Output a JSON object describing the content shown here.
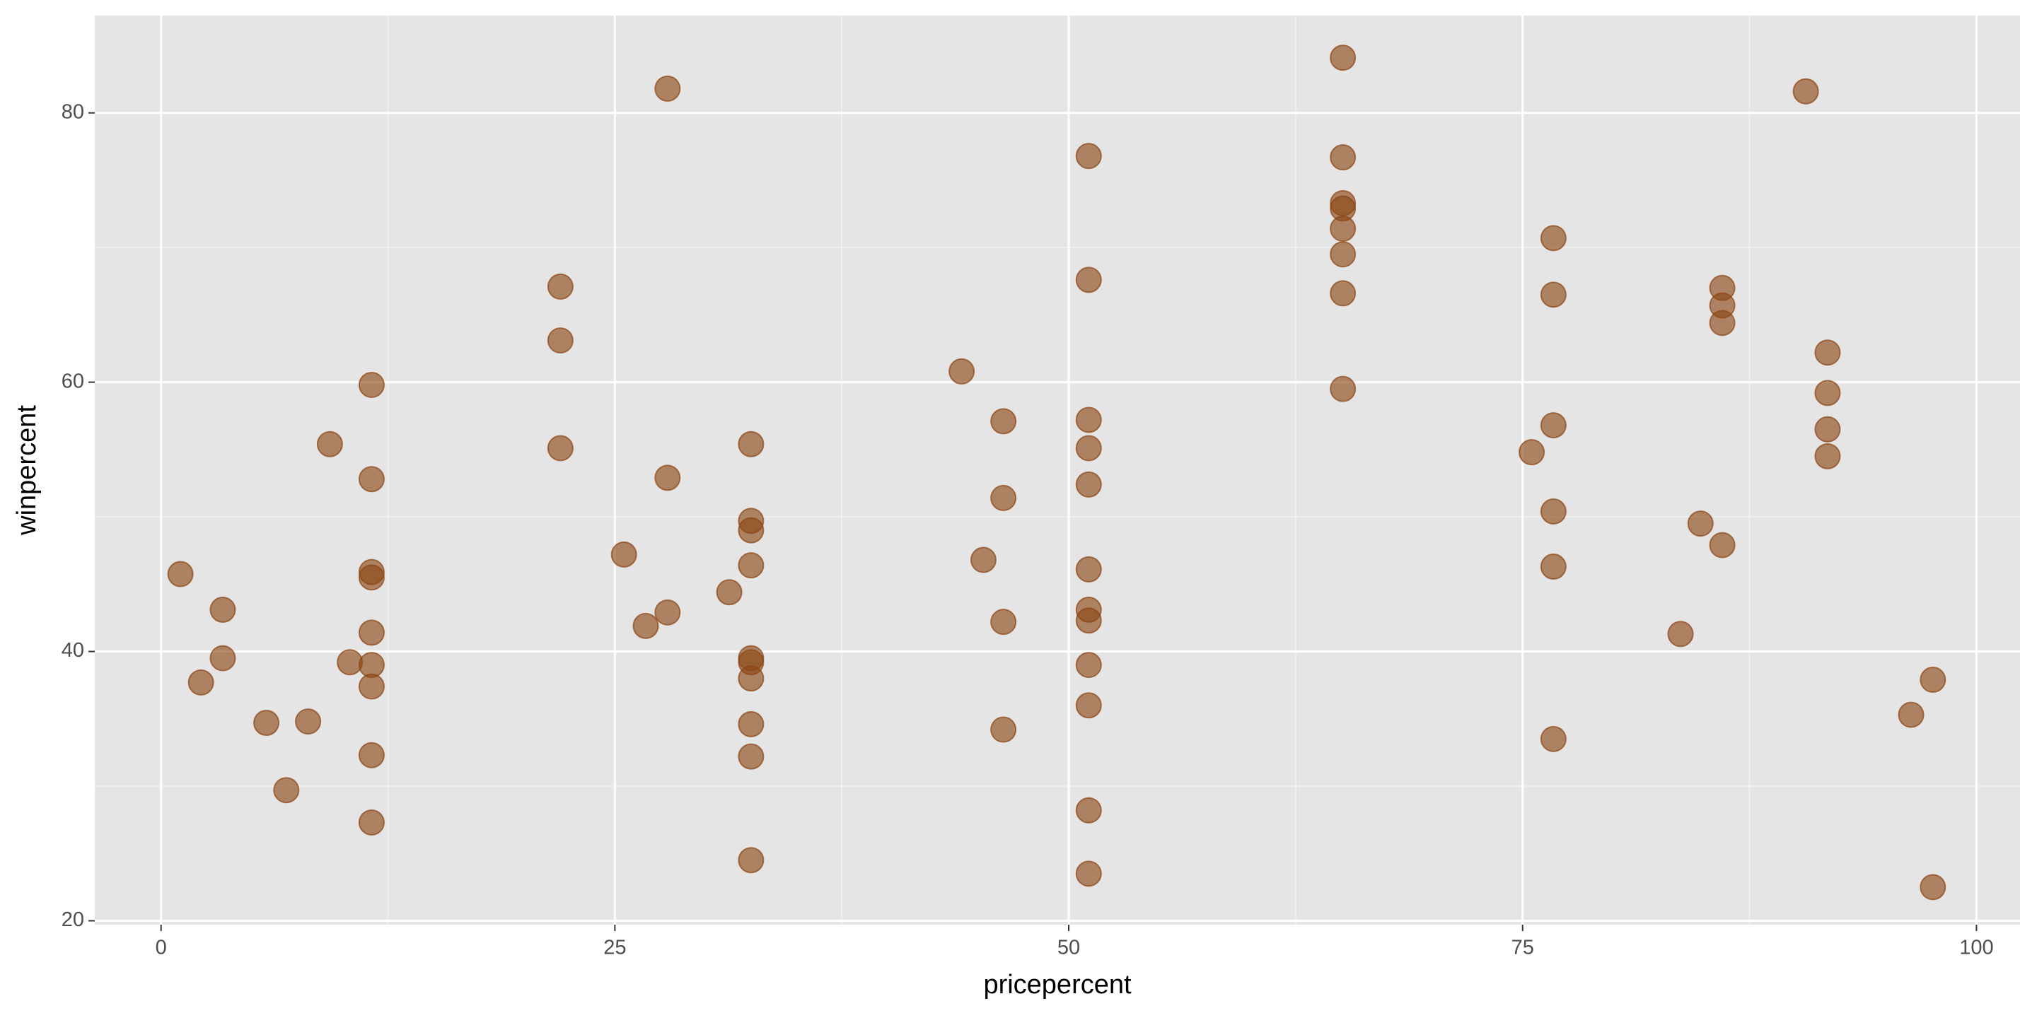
{
  "chart_data": {
    "type": "scatter",
    "x_label": "pricepercent",
    "y_label": "winpercent",
    "x": [
      1.07,
      2.2,
      3.4,
      3.4,
      5.8,
      6.9,
      8.1,
      9.3,
      10.4,
      11.6,
      11.6,
      11.6,
      11.6,
      11.6,
      11.6,
      11.6,
      11.6,
      11.6,
      22.0,
      22.0,
      22.0,
      25.5,
      26.7,
      27.9,
      27.9,
      27.9,
      31.3,
      32.5,
      32.5,
      32.5,
      32.5,
      32.5,
      32.5,
      32.5,
      32.5,
      32.5,
      32.5,
      44.1,
      45.3,
      46.4,
      46.4,
      46.4,
      46.4,
      51.1,
      51.1,
      51.1,
      51.1,
      51.1,
      51.1,
      51.1,
      51.1,
      51.1,
      51.1,
      51.1,
      51.1,
      65.1,
      65.1,
      65.1,
      65.1,
      65.1,
      65.1,
      65.1,
      65.1,
      75.5,
      76.7,
      76.7,
      76.7,
      76.7,
      76.7,
      76.7,
      83.7,
      84.8,
      86.0,
      86.0,
      86.0,
      86.0,
      90.6,
      91.8,
      91.8,
      91.8,
      91.8,
      96.4,
      97.6,
      97.6
    ],
    "values": [
      45.75,
      37.7,
      43.1,
      39.5,
      34.7,
      29.7,
      34.8,
      55.4,
      39.2,
      59.8,
      52.8,
      45.9,
      45.5,
      41.4,
      39.0,
      37.4,
      32.3,
      27.3,
      67.1,
      63.1,
      55.1,
      47.2,
      41.9,
      81.8,
      52.9,
      42.9,
      44.4,
      55.4,
      49.7,
      49.0,
      46.4,
      39.5,
      39.2,
      38.0,
      34.6,
      32.2,
      24.5,
      60.8,
      46.8,
      57.1,
      51.4,
      42.2,
      34.2,
      76.8,
      67.6,
      57.2,
      55.1,
      52.4,
      46.1,
      43.1,
      42.3,
      39.0,
      36.0,
      28.2,
      23.5,
      84.1,
      76.7,
      73.3,
      72.9,
      71.4,
      69.5,
      66.6,
      59.5,
      54.8,
      70.7,
      66.5,
      56.8,
      50.4,
      46.3,
      33.5,
      41.3,
      49.5,
      67.0,
      65.7,
      64.4,
      47.9,
      81.6,
      62.2,
      59.2,
      56.5,
      54.5,
      35.3,
      37.9,
      22.5
    ],
    "color": "#8B4513",
    "xlim": [
      -3.65,
      102.4
    ],
    "xticks": [
      0,
      25,
      50,
      75,
      100
    ],
    "ylim": [
      19.71,
      87.23
    ],
    "yticks": [
      20,
      40,
      60,
      80
    ],
    "grid": true
  }
}
